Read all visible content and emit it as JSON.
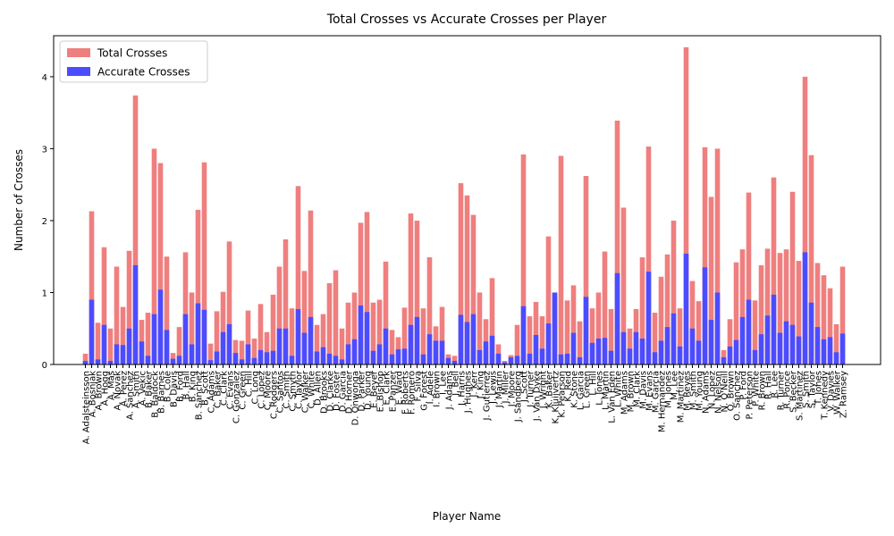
{
  "chart_data": {
    "type": "bar",
    "title": "Total Crosses vs Accurate Crosses per Player",
    "x_label": "Player Name",
    "y_label": "Number of Crosses",
    "legend": "upper left",
    "ylim": [
      0,
      4.57
    ],
    "yticks": [
      0,
      1,
      2,
      3,
      4
    ],
    "categories": [
      "A. Adalsteinsson",
      "A. Bosnjak",
      "A. Brown",
      "A. Hogg",
      "A. Mas",
      "A. Novak",
      "A. Perez",
      "A. Sanchez",
      "A. Smith",
      "A. Vekic",
      "B. Baker",
      "B. Baldock",
      "B. Barnes",
      "B. Cole",
      "B. Davis",
      "B. Ford",
      "B. Hall",
      "B. King",
      "B. Sanchez",
      "B. Scott",
      "C. Adams",
      "C. Baker",
      "C. Clark",
      "C. Evans",
      "C. Gonzalez",
      "C. Green",
      "C. Hill",
      "C. Long",
      "C. Lopez",
      "C. Moore",
      "C. Rodgers",
      "C. Santos",
      "C. Smith",
      "C. Smyth",
      "C. Taylor",
      "C. Walker",
      "C. White",
      "D. Allen",
      "D. Brooks",
      "D. Clarke",
      "D. Foster",
      "D. Garcia",
      "D. Horner",
      "D. Onwonga",
      "D. Parker",
      "D. Young",
      "E. Beyer",
      "E. Bishop",
      "E. Clark",
      "E. Panzer",
      "E. Ward",
      "F. Roberts",
      "F. Romero",
      "F. Silva",
      "G. Forest",
      "I. Adele",
      "I. Brown",
      "I. Lee",
      "J. Adams",
      "J. Bell",
      "J. Harris",
      "J. Hughes",
      "J. Kerr",
      "J. King",
      "J. Gutierrez",
      "J. Lewis",
      "J. Martin",
      "J. Miller",
      "J. Moore",
      "J. Sandberg",
      "J. Scott",
      "J. Turner",
      "J. Van Dyke",
      "J. Wright",
      "K. Baker",
      "K. Kluijvertz",
      "K. Pearson",
      "K. Reid",
      "K. Stone",
      "L. Garcia",
      "L. Green",
      "L. Hill",
      "L. Jones",
      "L. Martin",
      "L. Van Eden",
      "L. White",
      "M. Adams",
      "M. Brown",
      "M. Clark",
      "M. Davis",
      "M. Evans",
      "M. Garcia",
      "M. Hernandez",
      "M. Jones",
      "M. Lee",
      "M. Martinez",
      "M. Reyes",
      "M. Smith",
      "M. Young",
      "N. Adams",
      "N. Lopez",
      "N. Nelson",
      "N. O'Neill",
      "O. Brown",
      "O. Sanchez",
      "P. Ford",
      "P. Peterson",
      "P. White",
      "R. Brown",
      "R. Hall",
      "R. Lee",
      "R. Turner",
      "R. Ponce",
      "S. Becker",
      "S. Martinez",
      "S. Smith",
      "S. Taylor",
      "T. Jones",
      "T. Kennedy",
      "V. Davies",
      "W. Walker",
      "Z. Ramsey"
    ],
    "series": [
      {
        "name": "Total Crosses",
        "color": "#ef7f7f",
        "values": [
          0.15,
          2.13,
          0.58,
          1.63,
          0.5,
          1.36,
          0.8,
          1.58,
          3.74,
          0.62,
          0.72,
          3.0,
          2.8,
          1.5,
          0.16,
          0.52,
          1.56,
          1.0,
          2.15,
          2.81,
          0.29,
          0.74,
          1.01,
          1.71,
          0.34,
          0.33,
          0.75,
          0.36,
          0.84,
          0.45,
          0.97,
          1.36,
          1.74,
          0.78,
          2.48,
          1.3,
          2.14,
          0.55,
          0.7,
          1.13,
          1.31,
          0.5,
          0.86,
          1.0,
          1.97,
          2.12,
          0.86,
          0.9,
          1.43,
          0.48,
          0.38,
          0.79,
          2.1,
          2.0,
          0.78,
          1.49,
          0.53,
          0.8,
          0.14,
          0.12,
          2.52,
          2.35,
          2.08,
          1.0,
          0.63,
          1.2,
          0.28,
          0.05,
          0.13,
          0.55,
          2.92,
          0.67,
          0.87,
          0.67,
          1.78,
          1.0,
          2.9,
          0.89,
          1.1,
          0.6,
          2.62,
          0.78,
          1.0,
          1.57,
          0.77,
          3.39,
          2.18,
          0.5,
          0.77,
          1.49,
          3.03,
          0.72,
          1.22,
          1.53,
          2.0,
          0.78,
          4.41,
          1.16,
          0.88,
          3.02,
          2.33,
          3.0,
          0.2,
          0.63,
          1.42,
          1.6,
          2.39,
          0.89,
          1.38,
          1.61,
          2.6,
          1.55,
          1.6,
          2.4,
          1.44,
          4.0,
          2.91,
          1.41,
          1.24,
          1.06,
          0.56,
          1.36
        ]
      },
      {
        "name": "Accurate Crosses",
        "color": "#4c4cff",
        "values": [
          0.05,
          0.9,
          0.07,
          0.55,
          0.05,
          0.28,
          0.27,
          0.5,
          1.38,
          0.32,
          0.12,
          0.7,
          1.04,
          0.48,
          0.08,
          0.12,
          0.7,
          0.28,
          0.85,
          0.76,
          0.06,
          0.18,
          0.45,
          0.56,
          0.16,
          0.07,
          0.28,
          0.09,
          0.2,
          0.17,
          0.19,
          0.5,
          0.5,
          0.12,
          0.77,
          0.44,
          0.66,
          0.18,
          0.24,
          0.15,
          0.12,
          0.07,
          0.28,
          0.35,
          0.82,
          0.73,
          0.19,
          0.28,
          0.5,
          0.14,
          0.21,
          0.22,
          0.55,
          0.66,
          0.14,
          0.42,
          0.33,
          0.33,
          0.09,
          0.05,
          0.69,
          0.59,
          0.7,
          0.2,
          0.32,
          0.4,
          0.15,
          0.03,
          0.1,
          0.12,
          0.81,
          0.15,
          0.41,
          0.22,
          0.57,
          1.0,
          0.14,
          0.15,
          0.44,
          0.1,
          0.94,
          0.3,
          0.36,
          0.37,
          0.19,
          1.27,
          0.45,
          0.22,
          0.45,
          0.36,
          1.29,
          0.17,
          0.33,
          0.52,
          0.71,
          0.25,
          1.54,
          0.5,
          0.33,
          1.35,
          0.62,
          1.0,
          0.1,
          0.25,
          0.34,
          0.66,
          0.9,
          0.2,
          0.42,
          0.68,
          0.97,
          0.44,
          0.6,
          0.55,
          0.39,
          1.56,
          0.86,
          0.52,
          0.35,
          0.38,
          0.17,
          0.43
        ]
      }
    ]
  }
}
